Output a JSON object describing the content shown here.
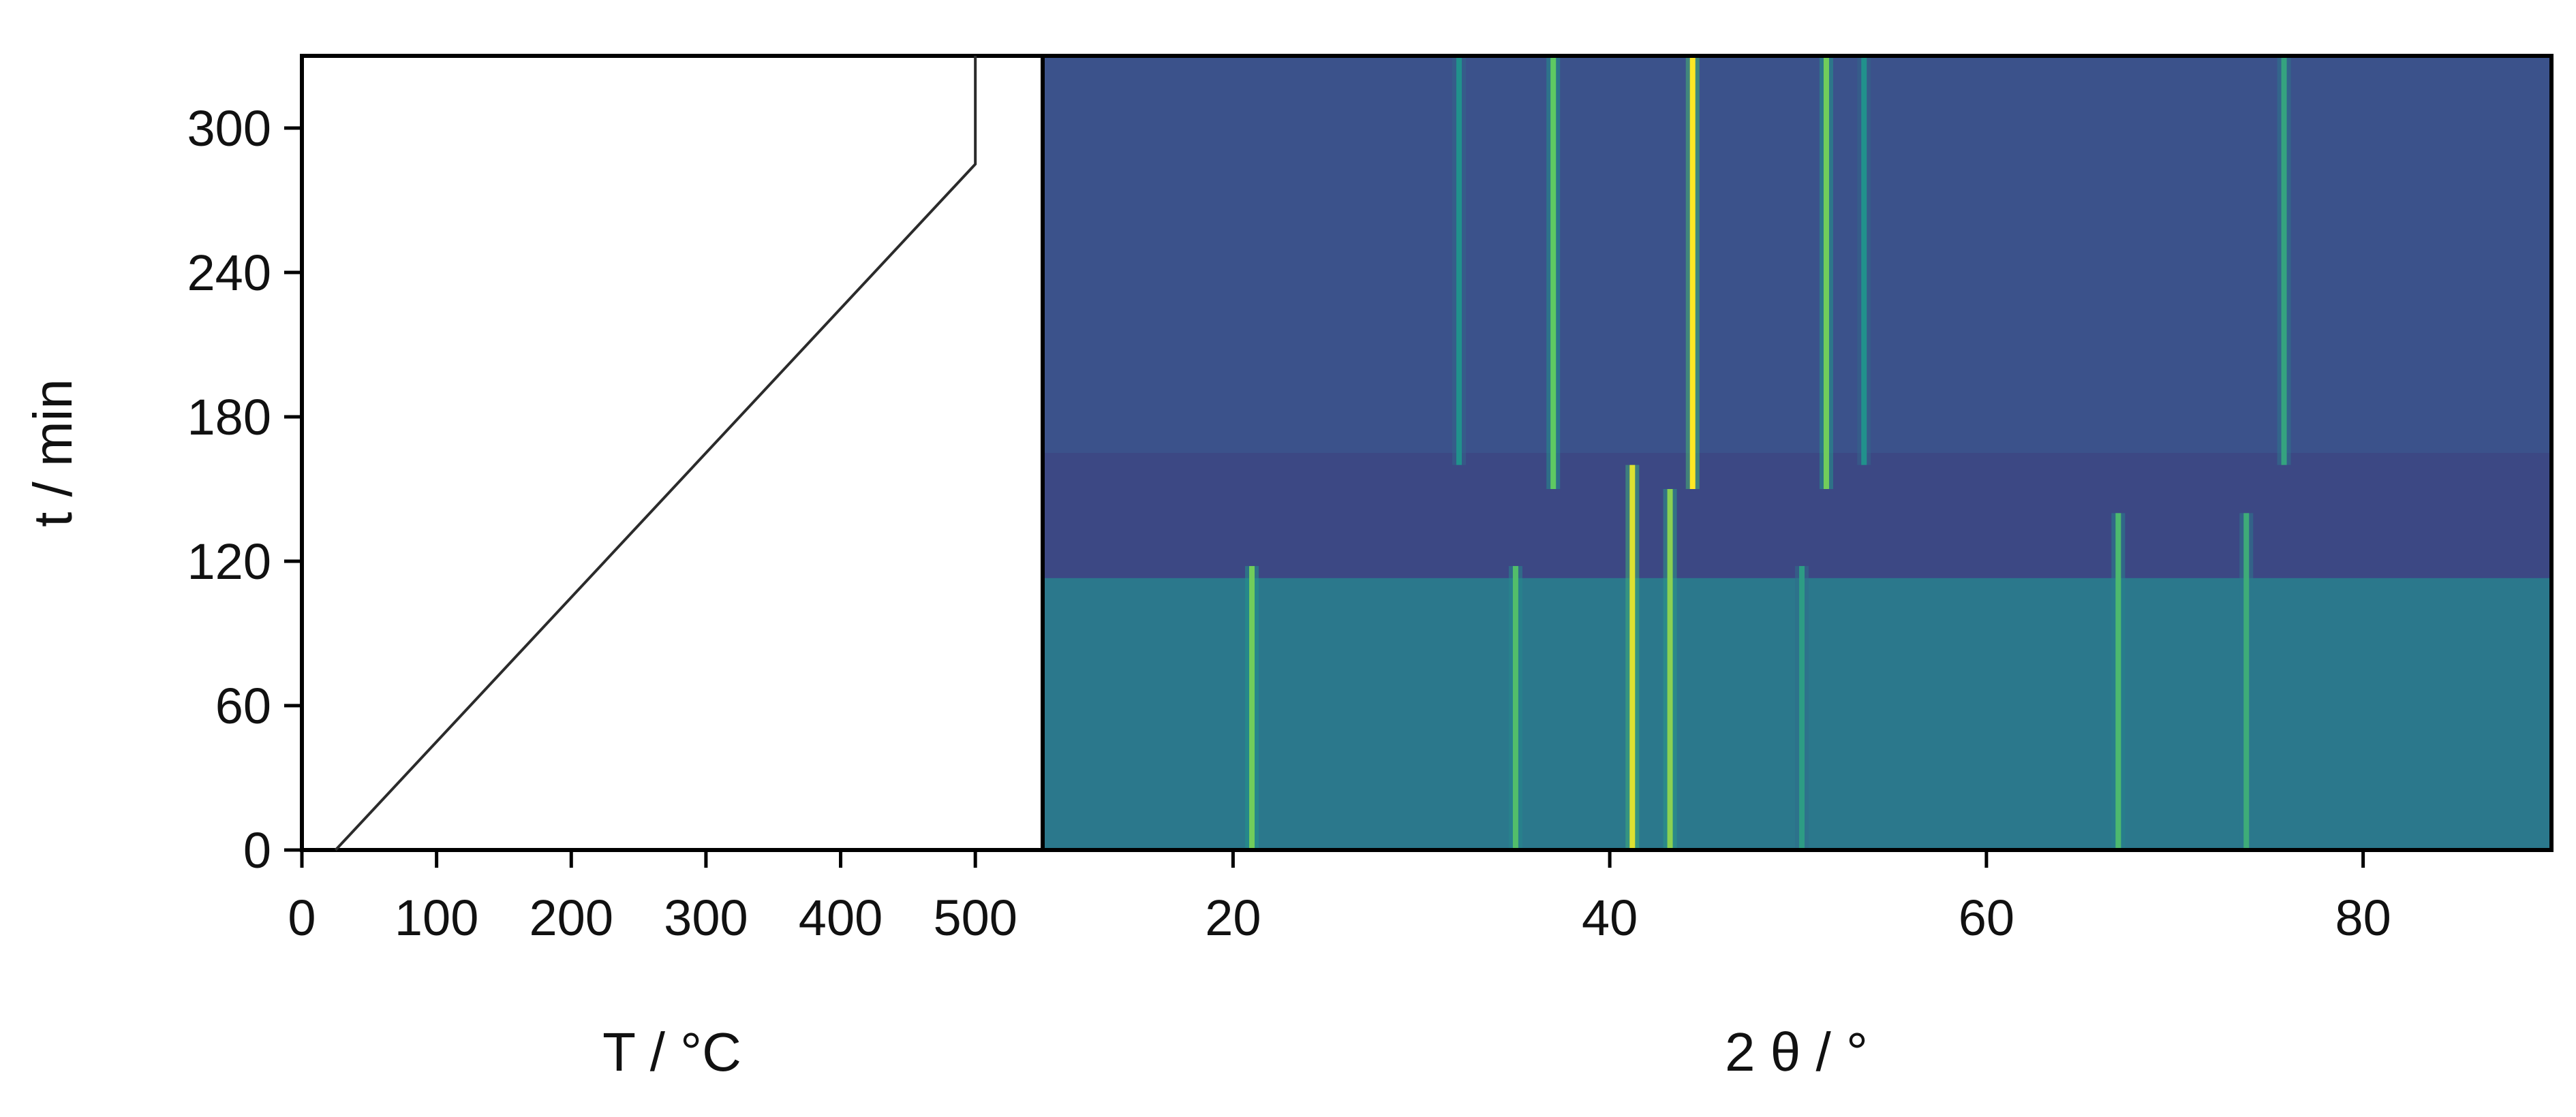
{
  "chart_data": [
    {
      "type": "line",
      "panel": "temperature-profile",
      "xlabel": "T / °C",
      "ylabel": "t / min",
      "xlim": [
        0,
        550
      ],
      "ylim": [
        0,
        330
      ],
      "x_ticks": [
        0,
        100,
        200,
        300,
        400,
        500
      ],
      "x_tick_labels": [
        "0",
        "100",
        "200",
        "300",
        "400",
        "500"
      ],
      "y_ticks": [
        0,
        60,
        120,
        180,
        240,
        300
      ],
      "y_tick_labels": [
        "0",
        "60",
        "120",
        "180",
        "240",
        "300"
      ],
      "grid": false,
      "series": [
        {
          "points": [
            [
              25,
              0
            ],
            [
              500,
              285
            ],
            [
              500,
              330
            ]
          ],
          "color": "#2b2b2b"
        }
      ]
    },
    {
      "type": "heatmap",
      "panel": "diffraction-map",
      "xlabel": "2 θ / °",
      "ylabel": "",
      "xlim": [
        10,
        90
      ],
      "ylim": [
        0,
        330
      ],
      "x_ticks": [
        20,
        40,
        60,
        80
      ],
      "x_tick_labels": [
        "20",
        "40",
        "60",
        "80"
      ],
      "grid": false,
      "colormap": [
        "#440154",
        "#3b528b",
        "#21918c",
        "#5ec962",
        "#fde725"
      ],
      "background_bands": [
        {
          "t_from": 0,
          "t_to": 113,
          "level": 0.4
        },
        {
          "t_from": 113,
          "t_to": 165,
          "level": 0.22
        },
        {
          "t_from": 165,
          "t_to": 330,
          "level": 0.25
        }
      ],
      "peaks": [
        {
          "two_theta": 21.0,
          "t_from": 0,
          "t_to": 118,
          "level": 0.78
        },
        {
          "two_theta": 35.0,
          "t_from": 0,
          "t_to": 118,
          "level": 0.7
        },
        {
          "two_theta": 41.2,
          "t_from": 0,
          "t_to": 160,
          "level": 0.95
        },
        {
          "two_theta": 43.2,
          "t_from": 0,
          "t_to": 150,
          "level": 0.82
        },
        {
          "two_theta": 50.2,
          "t_from": 0,
          "t_to": 118,
          "level": 0.55
        },
        {
          "two_theta": 67.0,
          "t_from": 0,
          "t_to": 140,
          "level": 0.68
        },
        {
          "two_theta": 73.8,
          "t_from": 0,
          "t_to": 140,
          "level": 0.62
        },
        {
          "two_theta": 32.0,
          "t_from": 160,
          "t_to": 330,
          "level": 0.5
        },
        {
          "two_theta": 37.0,
          "t_from": 150,
          "t_to": 330,
          "level": 0.75
        },
        {
          "two_theta": 44.4,
          "t_from": 150,
          "t_to": 330,
          "level": 1.0
        },
        {
          "two_theta": 51.5,
          "t_from": 150,
          "t_to": 330,
          "level": 0.78
        },
        {
          "two_theta": 53.5,
          "t_from": 160,
          "t_to": 330,
          "level": 0.5
        },
        {
          "two_theta": 75.8,
          "t_from": 160,
          "t_to": 330,
          "level": 0.58
        }
      ]
    }
  ]
}
